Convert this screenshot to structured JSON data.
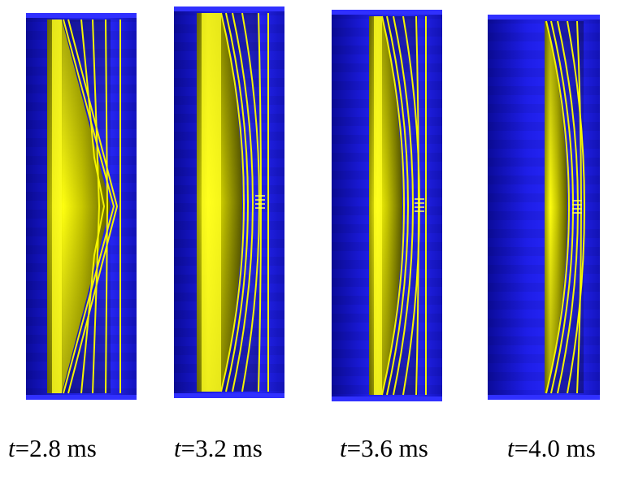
{
  "colors": {
    "background": "#ffffff",
    "tank_blue": "#1a1adf",
    "tank_edge": "#2b2bff",
    "yellow": "#f2f200",
    "yellow_dark": "#6a6a00"
  },
  "panels": [
    {
      "t_symbol": "t",
      "t_value": "=2.8 ms",
      "phase": 0
    },
    {
      "t_symbol": "t",
      "t_value": "=3.2 ms",
      "phase": 1
    },
    {
      "t_symbol": "t",
      "t_value": "=3.6 ms",
      "phase": 2
    },
    {
      "t_symbol": "t",
      "t_value": "=4.0 ms",
      "phase": 3
    }
  ]
}
